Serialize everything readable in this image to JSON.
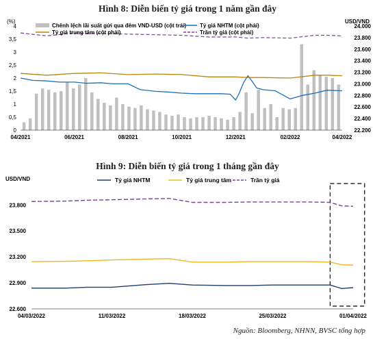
{
  "chart_data": [
    {
      "type": "bar",
      "title": "Hình 8: Diễn biến tỷ giá trong 1 năm gần đây",
      "left_axis_unit": "(%)",
      "right_axis_unit": "USD/VND",
      "left_ylim": [
        0,
        4
      ],
      "left_yticks": [
        "0",
        "0,5",
        "1",
        "1,5",
        "2",
        "2,5",
        "3",
        "3,5",
        "4"
      ],
      "right_ylim": [
        22200,
        24000
      ],
      "right_yticks": [
        "22.200",
        "22.400",
        "22.600",
        "22.800",
        "23.000",
        "23.200",
        "23.400",
        "23.600",
        "23.800",
        "24.000"
      ],
      "x_range": [
        "2021-04-01",
        "2022-04-01"
      ],
      "x_tick_dates": [
        "2021-04-01",
        "2021-06-01",
        "2021-08-01",
        "2021-10-01",
        "2021-12-01",
        "2022-02-01",
        "2022-04-01"
      ],
      "x_tick_labels": [
        "04/2021",
        "06/2021",
        "08/2021",
        "10/2021",
        "12/2021",
        "02/2022",
        "04/2022"
      ],
      "legend": [
        {
          "label": "Chênh lệch lãi suất gửi qua đêm VND-USD (cột trái)",
          "color": "#c0c0c0",
          "kind": "bar"
        },
        {
          "label": "Tỷ giá NHTM (cột phải)",
          "color": "#1f6fb5",
          "kind": "line"
        },
        {
          "label": "Tỷ giá trung tâm (cột phải)",
          "color": "#b8860b",
          "kind": "line"
        },
        {
          "label": "Trần tỷ giá (cột phải)",
          "color": "#7b3f99",
          "kind": "dashed"
        }
      ],
      "series": [
        {
          "name": "Chênh lệch lãi suất gửi qua đêm VND-USD (cột trái)",
          "axis": "left",
          "style": "bar",
          "x": [
            "2021-04-05",
            "2021-04-12",
            "2021-04-19",
            "2021-04-26",
            "2021-05-03",
            "2021-05-10",
            "2021-05-17",
            "2021-05-24",
            "2021-05-31",
            "2021-06-07",
            "2021-06-14",
            "2021-06-21",
            "2021-06-28",
            "2021-07-05",
            "2021-07-12",
            "2021-07-19",
            "2021-07-26",
            "2021-08-02",
            "2021-08-09",
            "2021-08-16",
            "2021-08-23",
            "2021-08-30",
            "2021-09-06",
            "2021-09-13",
            "2021-09-20",
            "2021-09-27",
            "2021-10-04",
            "2021-10-11",
            "2021-10-18",
            "2021-10-25",
            "2021-11-01",
            "2021-11-08",
            "2021-11-15",
            "2021-11-22",
            "2021-11-29",
            "2021-12-06",
            "2021-12-13",
            "2021-12-20",
            "2021-12-27",
            "2022-01-03",
            "2022-01-10",
            "2022-01-17",
            "2022-01-24",
            "2022-01-31",
            "2022-02-07",
            "2022-02-14",
            "2022-02-21",
            "2022-02-28",
            "2022-03-07",
            "2022-03-14",
            "2022-03-21",
            "2022-03-28"
          ],
          "values": [
            0.3,
            0.45,
            1.4,
            1.6,
            1.55,
            1.45,
            1.5,
            1.85,
            1.6,
            1.75,
            2.0,
            1.45,
            1.2,
            1.05,
            0.95,
            1.25,
            1.0,
            0.9,
            0.85,
            0.95,
            0.8,
            0.75,
            0.7,
            0.6,
            0.55,
            0.6,
            0.5,
            0.45,
            0.5,
            0.5,
            0.55,
            0.5,
            0.45,
            0.4,
            0.5,
            0.7,
            1.45,
            0.65,
            1.55,
            0.85,
            1.0,
            0.5,
            0.85,
            0.8,
            0.85,
            3.3,
            1.75,
            2.3,
            2.1,
            2.05,
            2.0,
            1.75
          ]
        },
        {
          "name": "Tỷ giá NHTM (cột phải)",
          "axis": "right",
          "style": "line",
          "x": [
            "2021-04-01",
            "2021-04-15",
            "2021-05-01",
            "2021-05-15",
            "2021-06-01",
            "2021-06-15",
            "2021-07-01",
            "2021-07-15",
            "2021-08-01",
            "2021-08-15",
            "2021-09-01",
            "2021-09-15",
            "2021-10-01",
            "2021-10-15",
            "2021-11-01",
            "2021-11-15",
            "2021-11-25",
            "2021-12-01",
            "2021-12-05",
            "2021-12-10",
            "2021-12-15",
            "2021-12-20",
            "2021-12-25",
            "2022-01-01",
            "2022-01-15",
            "2022-02-01",
            "2022-02-15",
            "2022-03-01",
            "2022-03-15",
            "2022-04-01"
          ],
          "values": [
            23100,
            23060,
            23050,
            23030,
            23030,
            23010,
            23020,
            23000,
            23000,
            22900,
            22870,
            22860,
            22840,
            22830,
            22830,
            22830,
            22820,
            22720,
            22830,
            23020,
            23140,
            23040,
            22930,
            22900,
            22880,
            22740,
            22800,
            22840,
            22890,
            22880
          ]
        },
        {
          "name": "Tỷ giá trung tâm (cột phải)",
          "axis": "right",
          "style": "line",
          "x": [
            "2021-04-01",
            "2021-05-01",
            "2021-06-01",
            "2021-07-01",
            "2021-08-01",
            "2021-09-01",
            "2021-10-01",
            "2021-11-01",
            "2021-12-01",
            "2021-12-15",
            "2022-01-01",
            "2022-02-01",
            "2022-03-01",
            "2022-03-15",
            "2022-04-01"
          ],
          "values": [
            23180,
            23150,
            23180,
            23190,
            23160,
            23170,
            23160,
            23120,
            23120,
            23110,
            23110,
            23100,
            23150,
            23150,
            23140
          ]
        },
        {
          "name": "Trần tỷ giá (cột phải)",
          "axis": "right",
          "style": "dashed",
          "x": [
            "2021-04-01",
            "2021-05-01",
            "2021-06-01",
            "2021-07-01",
            "2021-08-01",
            "2021-09-01",
            "2021-10-01",
            "2021-11-01",
            "2021-12-01",
            "2021-12-15",
            "2022-01-01",
            "2022-02-01",
            "2022-03-01",
            "2022-03-15",
            "2022-04-01"
          ],
          "values": [
            23880,
            23830,
            23880,
            23870,
            23860,
            23850,
            23840,
            23810,
            23810,
            23790,
            23800,
            23790,
            23840,
            23840,
            23830
          ]
        }
      ]
    },
    {
      "type": "line",
      "title": "Hình 9: Diễn biến tỷ giá trong 1 tháng gần đây",
      "ylabel": "USD/VND",
      "ylim": [
        22600,
        24000
      ],
      "yticks": [
        "22.600",
        "22.900",
        "23.200",
        "23.500",
        "23.800"
      ],
      "x_range": [
        "2022-03-04",
        "2022-04-01"
      ],
      "x_tick_dates": [
        "2022-03-04",
        "2022-03-11",
        "2022-03-18",
        "2022-03-25",
        "2022-04-01"
      ],
      "x_tick_labels": [
        "04/03/2022",
        "11/03/2022",
        "18/03/2022",
        "25/03/2022",
        "01/04/2022"
      ],
      "highlight_range": [
        "2022-03-30",
        "2022-04-02"
      ],
      "series": [
        {
          "name": "Tỷ giá NHTM",
          "color": "#1f3e6b",
          "style": "line",
          "x": [
            "2022-03-04",
            "2022-03-07",
            "2022-03-09",
            "2022-03-11",
            "2022-03-14",
            "2022-03-16",
            "2022-03-18",
            "2022-03-21",
            "2022-03-23",
            "2022-03-25",
            "2022-03-28",
            "2022-03-30",
            "2022-03-31",
            "2022-04-01"
          ],
          "values": [
            22840,
            22840,
            22850,
            22850,
            22880,
            22895,
            22875,
            22870,
            22870,
            22875,
            22875,
            22875,
            22835,
            22845
          ]
        },
        {
          "name": "Tỷ giá trung tâm",
          "color": "#f2b722",
          "style": "line",
          "x": [
            "2022-03-04",
            "2022-03-07",
            "2022-03-09",
            "2022-03-11",
            "2022-03-14",
            "2022-03-16",
            "2022-03-18",
            "2022-03-21",
            "2022-03-23",
            "2022-03-25",
            "2022-03-28",
            "2022-03-30",
            "2022-03-31",
            "2022-04-01"
          ],
          "values": [
            23145,
            23150,
            23155,
            23165,
            23175,
            23180,
            23140,
            23140,
            23145,
            23145,
            23145,
            23140,
            23110,
            23105
          ]
        },
        {
          "name": "Trần tỷ giá",
          "color": "#7b3f99",
          "style": "dashed",
          "x": [
            "2022-03-04",
            "2022-03-07",
            "2022-03-09",
            "2022-03-11",
            "2022-03-14",
            "2022-03-16",
            "2022-03-18",
            "2022-03-21",
            "2022-03-23",
            "2022-03-25",
            "2022-03-28",
            "2022-03-30",
            "2022-03-31",
            "2022-04-01"
          ],
          "values": [
            23840,
            23845,
            23855,
            23860,
            23870,
            23875,
            23830,
            23830,
            23835,
            23835,
            23835,
            23830,
            23790,
            23785
          ]
        }
      ]
    }
  ],
  "source_note": "Nguồn: Bloomberg, NHNN, BVSC tổng hợp"
}
